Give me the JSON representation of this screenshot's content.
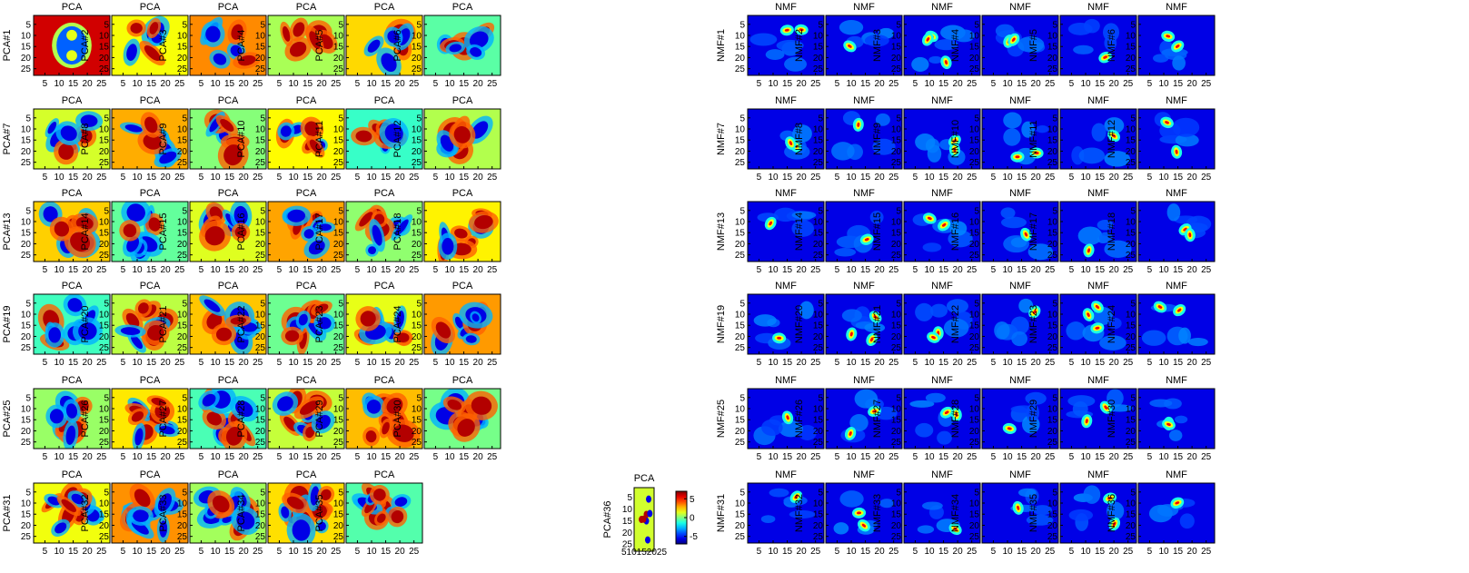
{
  "chart_data": [
    {
      "type": "heatmap",
      "name": "PCA",
      "panel_title": "PCA",
      "ylabel_prefix": "PCA#",
      "panels": 36,
      "xticks": [
        "5",
        "10",
        "15",
        "20",
        "25"
      ],
      "yticks": [
        "5",
        "10",
        "15",
        "20",
        "25"
      ],
      "xlim": [
        1,
        28
      ],
      "ylim": [
        1,
        28
      ],
      "colormap": "jet",
      "colorbar": {
        "ticks": [
          "5",
          "0",
          "-5"
        ],
        "range": [
          -7,
          7
        ]
      },
      "last_panel_xticks_label": "510152025",
      "colors": {
        "low": "#00008f",
        "mid": "#7fff7f",
        "high": "#800000"
      }
    },
    {
      "type": "heatmap",
      "name": "NMF",
      "panel_title": "NMF",
      "ylabel_prefix": "NMF#",
      "panels": 36,
      "xticks": [
        "5",
        "10",
        "15",
        "20",
        "25"
      ],
      "yticks": [
        "5",
        "10",
        "15",
        "20",
        "25"
      ],
      "xlim": [
        1,
        28
      ],
      "ylim": [
        1,
        28
      ],
      "colormap": "jet",
      "colors": {
        "background": "#00208f"
      }
    }
  ]
}
